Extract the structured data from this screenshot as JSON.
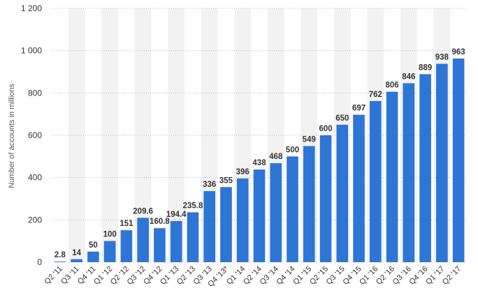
{
  "chart_data": {
    "type": "bar",
    "title": "",
    "xlabel": "",
    "ylabel": "Number of accounts in millions",
    "ylim": [
      0,
      1200
    ],
    "yticks": [
      0,
      200,
      400,
      600,
      800,
      1000,
      1200
    ],
    "ytick_labels": [
      "0",
      "200",
      "400",
      "600",
      "800",
      "1 000",
      "1 200"
    ],
    "grid": "horizontal dotted",
    "legend": "none",
    "categories": [
      "Q2 '11",
      "Q3 '11",
      "Q4 '11",
      "Q1 '12",
      "Q2 '12",
      "Q3 '12",
      "Q4 '12",
      "Q1 '13",
      "Q2 '13",
      "Q3 '13",
      "Q4 '13*",
      "Q1 '14",
      "Q2 '14",
      "Q3 '14",
      "Q4 '14",
      "Q1 '15",
      "Q2 '15",
      "Q3 '15",
      "Q4 '15",
      "Q1 '16",
      "Q2 '16",
      "Q3 '16",
      "Q4 '16",
      "Q1 '17",
      "Q2 '17"
    ],
    "values": [
      2.8,
      14,
      50,
      100,
      151,
      209.6,
      160.8,
      194.4,
      235.8,
      336,
      355,
      396,
      438,
      468,
      500,
      549,
      600,
      650,
      697,
      762,
      806,
      846,
      889,
      938,
      963
    ],
    "value_labels": [
      "2.8",
      "14",
      "50",
      "100",
      "151",
      "209.6",
      "160.8",
      "194.4",
      "235.8",
      "336",
      "355",
      "396",
      "438",
      "468",
      "500",
      "549",
      "600",
      "650",
      "697",
      "762",
      "806",
      "846",
      "889",
      "938",
      "963"
    ],
    "colors": {
      "bar": "#2f75d6",
      "band": "#f2f2f2",
      "grid": "#bbbbbb",
      "text": "#333333"
    }
  }
}
